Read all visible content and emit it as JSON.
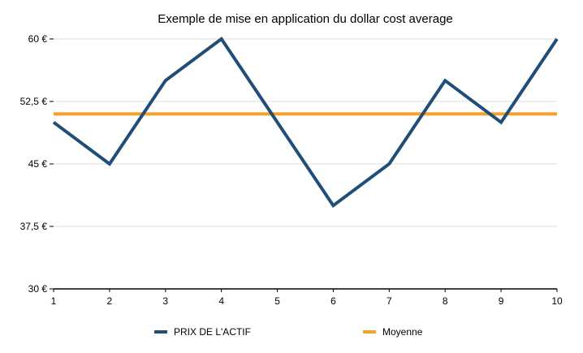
{
  "chart_data": {
    "type": "line",
    "title": "Exemple de mise en application du dollar cost average",
    "xlabel": "",
    "ylabel": "",
    "x": [
      1,
      2,
      3,
      4,
      5,
      6,
      7,
      8,
      9,
      10
    ],
    "x_tick_labels": [
      "1",
      "2",
      "3",
      "4",
      "5",
      "6",
      "7",
      "8",
      "9",
      "10"
    ],
    "ylim": [
      30,
      60
    ],
    "y_ticks": [
      30,
      37.5,
      45,
      52.5,
      60
    ],
    "y_tick_labels": [
      "30 €",
      "37,5 €",
      "45 €",
      "52,5 €",
      "60 €"
    ],
    "grid": true,
    "legend_position": "bottom",
    "series": [
      {
        "name": "PRIX DE L'ACTIF",
        "color": "#1f4e79",
        "values": [
          50,
          45,
          55,
          60,
          50,
          40,
          45,
          55,
          50,
          60
        ]
      },
      {
        "name": "Moyenne",
        "color": "#f5a02a",
        "values": [
          51,
          51,
          51,
          51,
          51,
          51,
          51,
          51,
          51,
          51
        ]
      }
    ]
  }
}
